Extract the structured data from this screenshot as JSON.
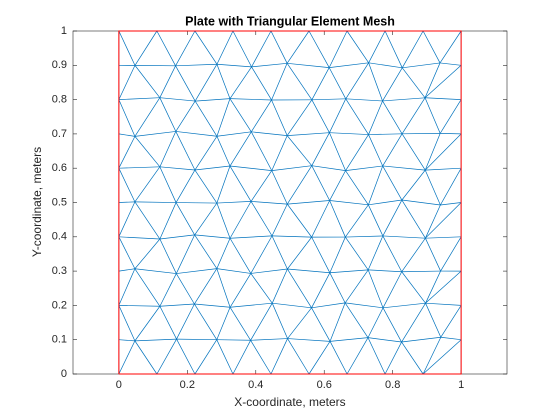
{
  "chart_data": {
    "type": "mesh",
    "title": "Plate with Triangular Element Mesh",
    "x_label": "X-coordinate, meters",
    "y_label": "Y-coordinate, meters",
    "boundary": {
      "x": [
        0,
        1,
        1,
        0,
        0
      ],
      "y": [
        0,
        0,
        1,
        1,
        0
      ],
      "color": "#ff0000"
    },
    "mesh_color": "#0072bd",
    "xlim": [
      -0.134,
      1.134
    ],
    "ylim": [
      0,
      1
    ],
    "xticks": [
      0,
      0.2,
      0.4,
      0.6,
      0.8,
      1
    ],
    "yticks": [
      0,
      0.1,
      0.2,
      0.3,
      0.4,
      0.5,
      0.6,
      0.7,
      0.8,
      0.9,
      1
    ]
  }
}
